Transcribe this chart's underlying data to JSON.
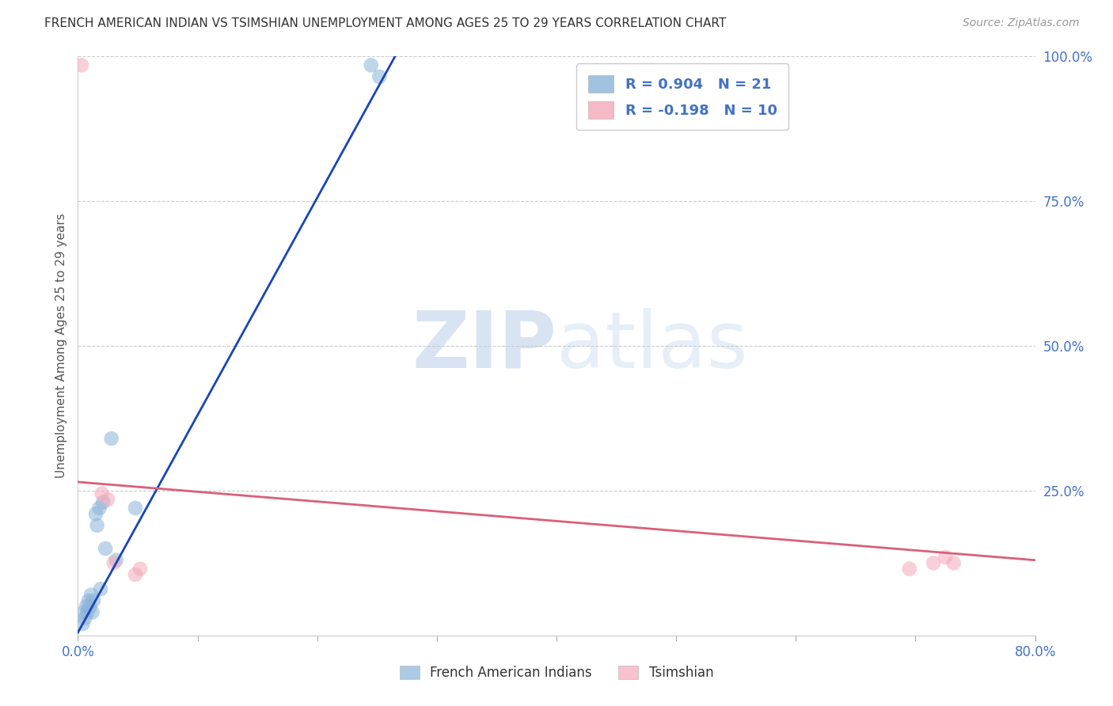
{
  "title": "FRENCH AMERICAN INDIAN VS TSIMSHIAN UNEMPLOYMENT AMONG AGES 25 TO 29 YEARS CORRELATION CHART",
  "source": "Source: ZipAtlas.com",
  "ylabel": "Unemployment Among Ages 25 to 29 years",
  "xlim": [
    0.0,
    0.8
  ],
  "ylim": [
    0.0,
    1.0
  ],
  "xticks": [
    0.0,
    0.1,
    0.2,
    0.3,
    0.4,
    0.5,
    0.6,
    0.7,
    0.8
  ],
  "xticklabels": [
    "0.0%",
    "",
    "",
    "",
    "",
    "",
    "",
    "",
    "80.0%"
  ],
  "yticks": [
    0.0,
    0.25,
    0.5,
    0.75,
    1.0
  ],
  "yticklabels": [
    "",
    "25.0%",
    "50.0%",
    "75.0%",
    "100.0%"
  ],
  "blue_color": "#8ab4d9",
  "pink_color": "#f4a8b8",
  "blue_line_color": "#1a44bb",
  "pink_line_color": "#d9607a",
  "blue_R": 0.904,
  "blue_N": 21,
  "pink_R": -0.198,
  "pink_N": 10,
  "watermark_zip": "ZIP",
  "watermark_atlas": "atlas",
  "legend_label_blue": "French American Indians",
  "legend_label_pink": "Tsimshian",
  "blue_scatter_x": [
    0.004,
    0.005,
    0.006,
    0.007,
    0.008,
    0.009,
    0.01,
    0.011,
    0.012,
    0.013,
    0.015,
    0.016,
    0.018,
    0.019,
    0.021,
    0.023,
    0.028,
    0.032,
    0.048,
    0.245,
    0.252
  ],
  "blue_scatter_y": [
    0.02,
    0.04,
    0.03,
    0.05,
    0.04,
    0.06,
    0.05,
    0.07,
    0.04,
    0.06,
    0.21,
    0.19,
    0.22,
    0.08,
    0.23,
    0.15,
    0.34,
    0.13,
    0.22,
    0.985,
    0.965
  ],
  "pink_scatter_x": [
    0.003,
    0.02,
    0.025,
    0.03,
    0.048,
    0.052,
    0.695,
    0.715,
    0.725,
    0.732
  ],
  "pink_scatter_y": [
    0.985,
    0.245,
    0.235,
    0.125,
    0.105,
    0.115,
    0.115,
    0.125,
    0.135,
    0.125
  ],
  "blue_line_x": [
    0.0,
    0.265
  ],
  "blue_line_y": [
    0.005,
    1.0
  ],
  "pink_line_x": [
    0.0,
    0.8
  ],
  "pink_line_y": [
    0.265,
    0.13
  ],
  "figsize": [
    14.06,
    8.92
  ],
  "dpi": 100
}
